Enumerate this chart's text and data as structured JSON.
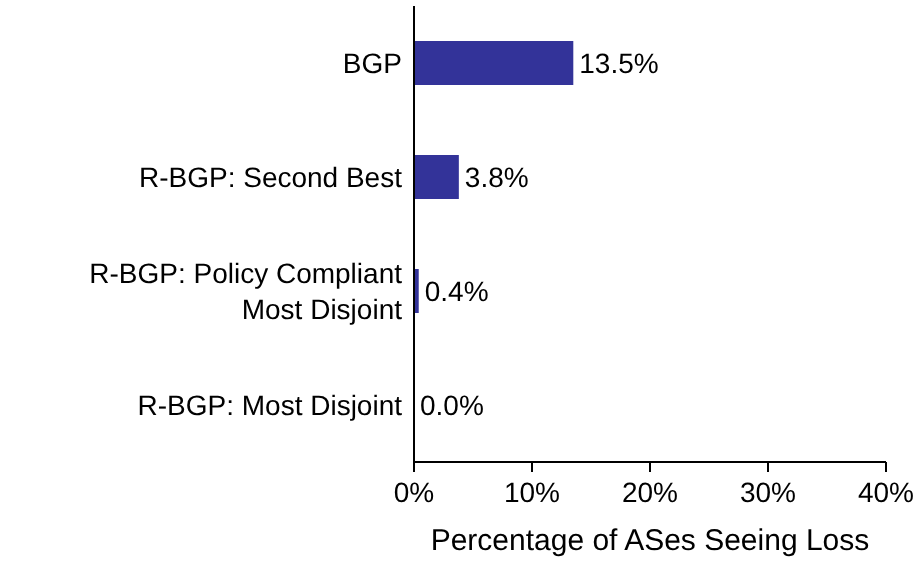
{
  "chart_data": {
    "type": "bar",
    "orientation": "horizontal",
    "categories": [
      "BGP",
      "R-BGP: Second Best",
      "R-BGP: Policy Compliant Most Disjoint",
      "R-BGP: Most Disjoint"
    ],
    "values": [
      13.5,
      3.8,
      0.4,
      0.0
    ],
    "color": "#333399",
    "value_labels": [
      "13.5%",
      "3.8%",
      "0.4%",
      "0.0%"
    ],
    "xlim": [
      0,
      40
    ],
    "xticks": [
      {
        "value": 0,
        "label": "0%"
      },
      {
        "value": 10,
        "label": "10%"
      },
      {
        "value": 20,
        "label": "20%"
      },
      {
        "value": 30,
        "label": "30%"
      },
      {
        "value": 40,
        "label": "40%"
      }
    ],
    "xlabel": "Percentage of ASes Seeing Loss",
    "grid": false
  }
}
